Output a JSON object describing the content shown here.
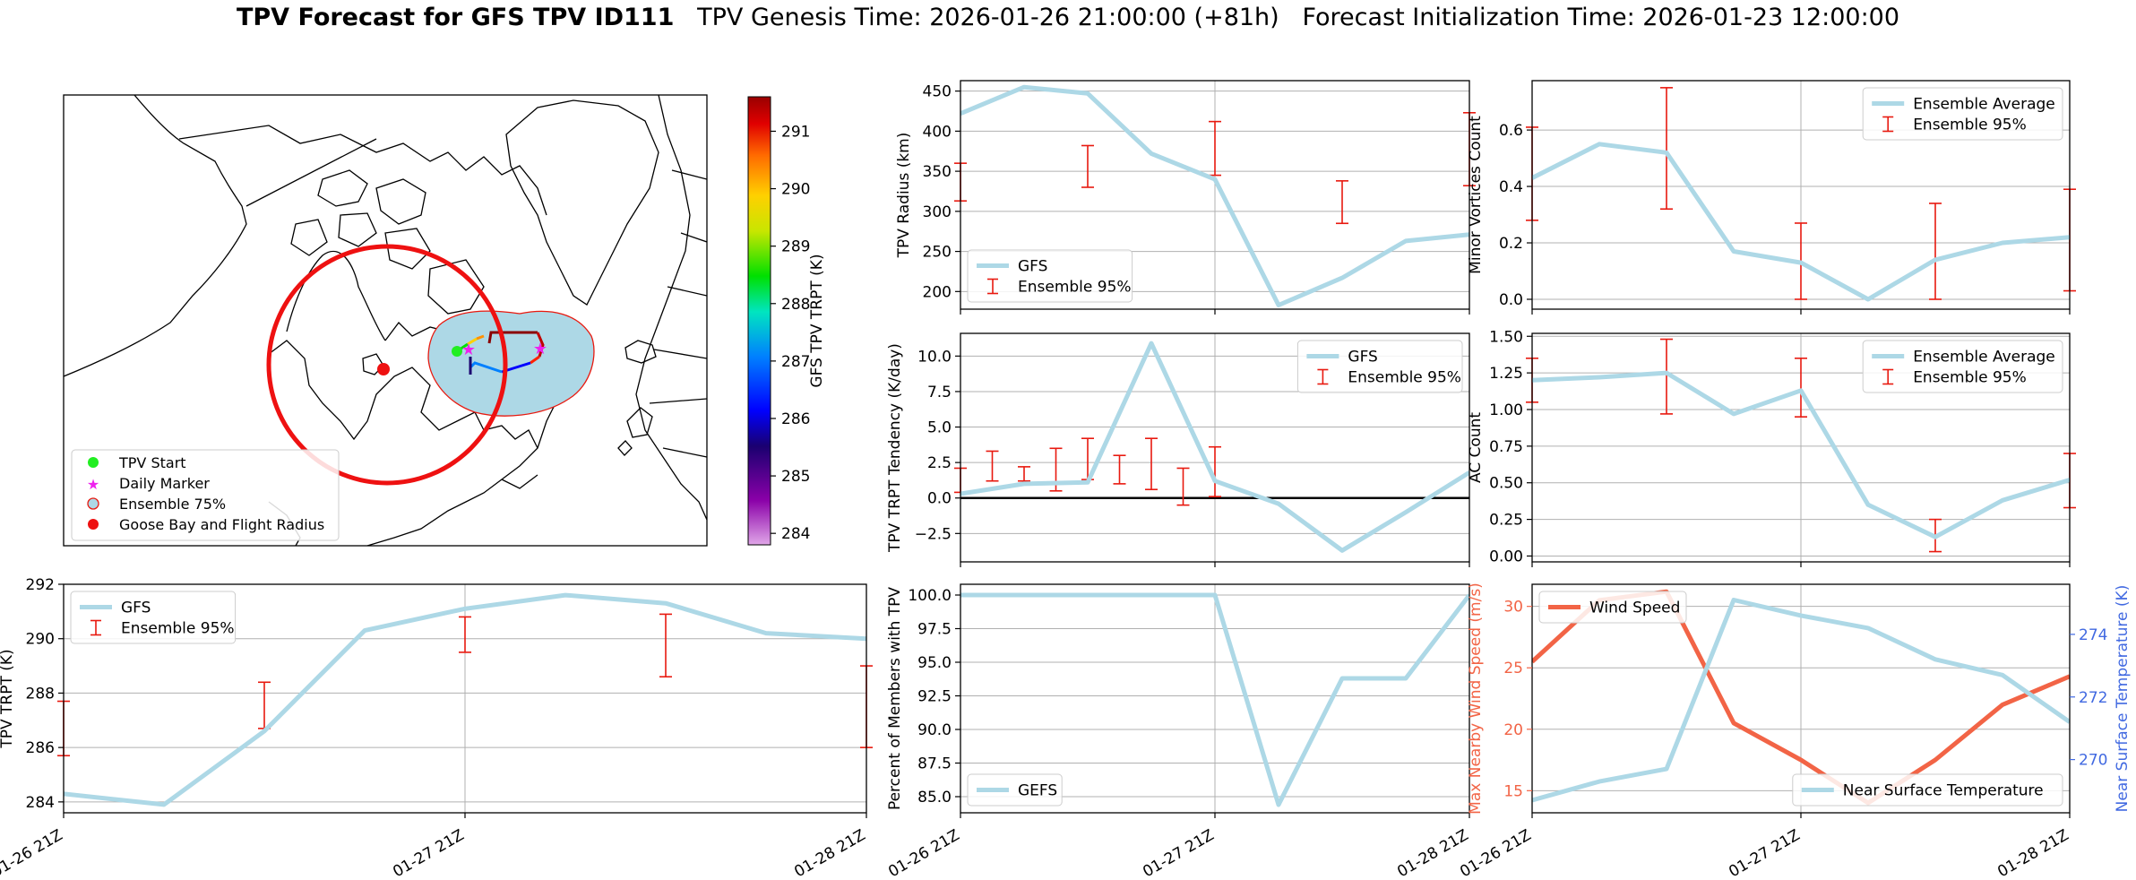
{
  "title": {
    "bold": "TPV Forecast for GFS TPV ID111",
    "genesis": "TPV Genesis Time: 2026-01-26 21:00:00 (+81h)",
    "init": "Forecast Initialization Time: 2026-01-23 12:00:00"
  },
  "colors": {
    "gfs_line": "#add8e6",
    "ensemble_bar": "#e8190f",
    "wind_line": "#f26446",
    "temp_axis": "#4169e1",
    "gander_circle": "#ee1111"
  },
  "time_ticks": [
    "01-26 21Z",
    "01-27 21Z",
    "01-28 21Z"
  ],
  "chart_data": [
    {
      "id": "map",
      "type": "map",
      "colorbar": {
        "label": "GFS TPV TRPT (K)",
        "min": 283.8,
        "max": 291.6,
        "ticks": [
          284,
          285,
          286,
          287,
          288,
          289,
          290,
          291
        ]
      },
      "legend": {
        "placement": "lower-left",
        "entries": [
          {
            "label": "TPV Start",
            "marker": "circle",
            "color": "#22ee22"
          },
          {
            "label": "Daily Marker",
            "marker": "star",
            "color": "#ee22ee"
          },
          {
            "label": "Ensemble 75%",
            "marker": "circle",
            "color": "#add8e6",
            "edge": "#e8190f"
          },
          {
            "label": "Goose Bay and Flight Radius",
            "marker": "circle",
            "color": "#ee1111"
          }
        ]
      }
    },
    {
      "id": "radius",
      "type": "line",
      "ylabel": "TPV Radius (km)",
      "ylim": [
        178,
        463
      ],
      "yticks": [
        200,
        250,
        300,
        350,
        400,
        450
      ],
      "x": [
        0,
        0.25,
        0.5,
        0.75,
        1,
        1.25,
        1.5,
        1.75,
        2
      ],
      "series": [
        {
          "name": "GFS",
          "values": [
            422,
            455,
            447,
            372,
            340,
            183,
            217,
            263,
            271
          ]
        }
      ],
      "ensemble": {
        "name": "Ensemble 95%",
        "x": [
          0,
          0.5,
          1,
          1.5,
          2
        ],
        "low": [
          313,
          330,
          345,
          285,
          332
        ],
        "high": [
          360,
          382,
          412,
          338,
          423
        ]
      },
      "legend": "lower-left"
    },
    {
      "id": "minor",
      "type": "line",
      "ylabel": "Minor Vortices Count",
      "ylim": [
        -0.035,
        0.775
      ],
      "yticks": [
        0.0,
        0.2,
        0.4,
        0.6
      ],
      "x": [
        0,
        0.25,
        0.5,
        0.75,
        1,
        1.25,
        1.5,
        1.75,
        2
      ],
      "series": [
        {
          "name": "Ensemble Average",
          "values": [
            0.43,
            0.55,
            0.52,
            0.17,
            0.13,
            0.0,
            0.14,
            0.2,
            0.22
          ]
        }
      ],
      "ensemble": {
        "name": "Ensemble 95%",
        "x": [
          0,
          0.5,
          1,
          1.5,
          2
        ],
        "low": [
          0.28,
          0.32,
          0.0,
          0.0,
          0.03
        ],
        "high": [
          0.61,
          0.75,
          0.27,
          0.34,
          0.39
        ]
      },
      "legend": "upper-right"
    },
    {
      "id": "tendency",
      "type": "line",
      "ylabel": "TPV TRPT Tendency (K/day)",
      "ylim": [
        -4.5,
        11.6
      ],
      "yticks": [
        -2.5,
        0.0,
        2.5,
        5.0,
        7.5,
        10.0
      ],
      "zero_line": true,
      "x": [
        0,
        0.25,
        0.5,
        0.75,
        1,
        1.25,
        1.5,
        1.75,
        2
      ],
      "series": [
        {
          "name": "GFS",
          "values": [
            0.3,
            1.0,
            1.1,
            10.9,
            1.2,
            -0.4,
            -3.7,
            -1.0,
            1.8
          ]
        }
      ],
      "ensemble": {
        "name": "Ensemble 95%",
        "x": [
          0,
          0.125,
          0.25,
          0.375,
          0.5,
          0.625,
          0.75,
          0.875,
          1.0
        ],
        "low": [
          0.4,
          1.2,
          1.2,
          0.5,
          1.3,
          1.0,
          0.6,
          -0.5,
          0.1
        ],
        "high": [
          2.1,
          3.3,
          2.2,
          3.5,
          4.2,
          3.0,
          4.2,
          2.1,
          3.6
        ]
      },
      "legend": "upper-right"
    },
    {
      "id": "ac",
      "type": "line",
      "ylabel": "AC Count",
      "ylim": [
        -0.04,
        1.52
      ],
      "yticks": [
        0.0,
        0.25,
        0.5,
        0.75,
        1.0,
        1.25,
        1.5
      ],
      "x": [
        0,
        0.25,
        0.5,
        0.75,
        1,
        1.25,
        1.5,
        1.75,
        2
      ],
      "series": [
        {
          "name": "Ensemble Average",
          "values": [
            1.2,
            1.22,
            1.25,
            0.97,
            1.13,
            0.35,
            0.13,
            0.38,
            0.52
          ]
        }
      ],
      "ensemble": {
        "name": "Ensemble 95%",
        "x": [
          0,
          0.5,
          1,
          1.5,
          2
        ],
        "low": [
          1.05,
          0.97,
          0.95,
          0.03,
          0.33
        ],
        "high": [
          1.35,
          1.48,
          1.35,
          0.25,
          0.7
        ]
      },
      "legend": "upper-right"
    },
    {
      "id": "trpt",
      "type": "line",
      "ylabel": "TPV TRPT (K)",
      "ylim": [
        283.6,
        292.0
      ],
      "yticks": [
        284,
        286,
        288,
        290,
        292
      ],
      "x": [
        0,
        0.25,
        0.5,
        0.75,
        1,
        1.25,
        1.5,
        1.75,
        2
      ],
      "series": [
        {
          "name": "GFS",
          "values": [
            284.3,
            283.9,
            286.6,
            290.3,
            291.1,
            291.6,
            291.3,
            290.2,
            290.0
          ]
        }
      ],
      "ensemble": {
        "name": "Ensemble 95%",
        "x": [
          0,
          0.5,
          1,
          1.5,
          2
        ],
        "low": [
          285.7,
          286.7,
          289.5,
          288.6,
          286.0
        ],
        "high": [
          287.7,
          288.4,
          290.8,
          290.9,
          289.0
        ]
      },
      "legend": "upper-left"
    },
    {
      "id": "members",
      "type": "line",
      "ylabel": "Percent of Members with TPV",
      "ylim": [
        83.8,
        100.8
      ],
      "yticks": [
        85.0,
        87.5,
        90.0,
        92.5,
        95.0,
        97.5,
        100.0
      ],
      "x": [
        0,
        0.25,
        0.5,
        0.75,
        1,
        1.25,
        1.5,
        1.75,
        2
      ],
      "series": [
        {
          "name": "GEFS",
          "values": [
            100,
            100,
            100,
            100,
            100,
            84.4,
            93.8,
            93.8,
            100
          ]
        }
      ],
      "legend": "lower-left"
    },
    {
      "id": "wind",
      "type": "line",
      "ylabel": "Max Nearby Wind Speed (m/s)",
      "ylim": [
        13.2,
        31.8
      ],
      "yticks": [
        15,
        20,
        25,
        30
      ],
      "y2label": "Near Surface Temperature (K)",
      "y2lim": [
        268.3,
        275.6
      ],
      "y2ticks": [
        270,
        272,
        274
      ],
      "x": [
        0,
        0.25,
        0.5,
        0.75,
        1,
        1.25,
        1.5,
        1.75,
        2
      ],
      "series": [
        {
          "name": "Wind Speed",
          "axis": "left",
          "values": [
            25.5,
            30.5,
            31.2,
            20.5,
            17.5,
            14.0,
            17.5,
            22.0,
            24.3
          ]
        },
        {
          "name": "Near Surface Temperature",
          "axis": "right",
          "values": [
            268.7,
            269.3,
            269.7,
            275.1,
            274.6,
            274.2,
            273.2,
            272.7,
            271.2
          ]
        }
      ],
      "legend_left": "upper-left",
      "legend_right": "lower-right"
    }
  ]
}
